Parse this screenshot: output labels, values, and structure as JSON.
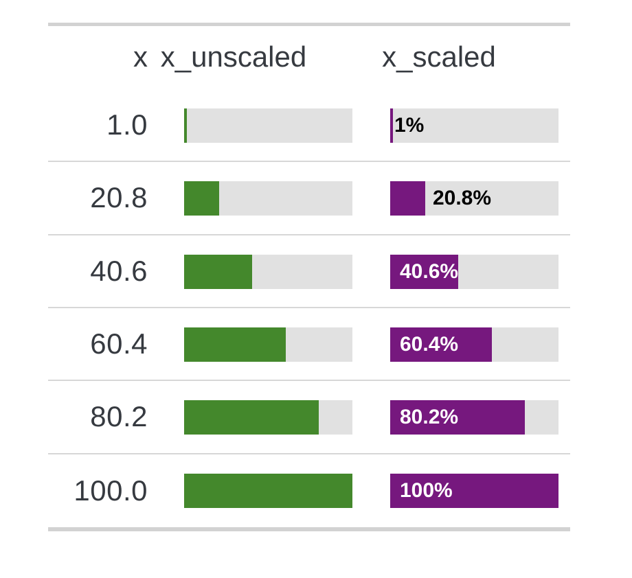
{
  "table": {
    "columns": [
      {
        "label": "x"
      },
      {
        "label": "x_unscaled"
      },
      {
        "label": "x_scaled"
      }
    ],
    "rows": [
      {
        "x": "1.0",
        "value": 1.0,
        "scaled_label": "1%",
        "label_placement": "outside"
      },
      {
        "x": "20.8",
        "value": 20.8,
        "scaled_label": "20.8%",
        "label_placement": "outside"
      },
      {
        "x": "40.6",
        "value": 40.6,
        "scaled_label": "40.6%",
        "label_placement": "inside"
      },
      {
        "x": "60.4",
        "value": 60.4,
        "scaled_label": "60.4%",
        "label_placement": "inside"
      },
      {
        "x": "80.2",
        "value": 80.2,
        "scaled_label": "80.2%",
        "label_placement": "inside"
      },
      {
        "x": "100.0",
        "value": 100.0,
        "scaled_label": "100%",
        "label_placement": "inside"
      }
    ]
  },
  "colors": {
    "unscaled_bar": "#44882c",
    "scaled_bar": "#76187e",
    "bar_track": "#e1e1e1",
    "border": "#d2d2d2",
    "row_divider": "#d7d7d7",
    "text": "#363a40",
    "label_outside": "#000000",
    "label_inside": "#ffffff"
  },
  "chart_data": {
    "type": "table",
    "title": "",
    "columns": [
      "x",
      "x_unscaled",
      "x_scaled"
    ],
    "rows_x": [
      1.0,
      20.8,
      40.6,
      60.4,
      80.2,
      100.0
    ],
    "series": [
      {
        "name": "x_unscaled",
        "type": "bar",
        "values": [
          1.0,
          20.8,
          40.6,
          60.4,
          80.2,
          100.0
        ],
        "axis_range": [
          0,
          100
        ],
        "color": "#44882c",
        "data_labels": []
      },
      {
        "name": "x_scaled",
        "type": "bar",
        "values": [
          1.0,
          20.8,
          40.6,
          60.4,
          80.2,
          100.0
        ],
        "axis_range": [
          0,
          100
        ],
        "color": "#76187e",
        "data_labels": [
          "1%",
          "20.8%",
          "40.6%",
          "60.4%",
          "80.2%",
          "100%"
        ]
      }
    ],
    "legend": "none",
    "grid": "off"
  }
}
